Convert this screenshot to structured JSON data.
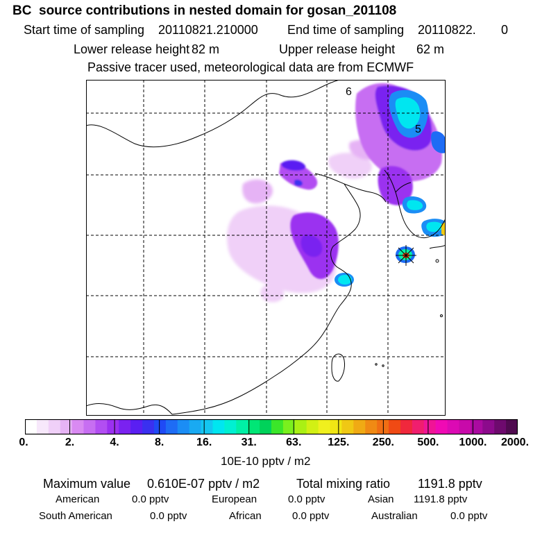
{
  "title": "BC  source contributions in nested domain for gosan_201108",
  "header": {
    "start_label": "Start time of sampling",
    "start_value": "20110821.210000",
    "end_label": "End time of sampling",
    "end_value": "20110822.",
    "end_value_hour": "0",
    "lower_label": "Lower release height",
    "lower_value": "82 m",
    "upper_label": "Upper release height",
    "upper_value": "62 m",
    "tracer_note": "Passive tracer used, meteorological data are from ECMWF"
  },
  "map": {
    "label_a": "6",
    "label_b": "5",
    "receptor_marker": "receptor-star"
  },
  "colorbar": {
    "ticks": [
      "0.",
      "2.",
      "4.",
      "8.",
      "16.",
      "31.",
      "63.",
      "125.",
      "250.",
      "500.",
      "1000.",
      "2000."
    ],
    "unit": "10E-10 pptv / m2",
    "colors": [
      "#ffffff",
      "#f7e8fb",
      "#f0d0f8",
      "#e6b3f5",
      "#d98af2",
      "#c76ef2",
      "#b24ef2",
      "#9b30f0",
      "#7a22f0",
      "#5a1ff2",
      "#3a30f0",
      "#1f4af5",
      "#1e6cf5",
      "#1b8df5",
      "#19aaf2",
      "#14c6f0",
      "#00e6f0",
      "#00f0d2",
      "#00f0a6",
      "#00e676",
      "#00d25a",
      "#3be62a",
      "#7af01e",
      "#aaf014",
      "#d2f014",
      "#f0f01e",
      "#f0e614",
      "#f0c814",
      "#f0aa14",
      "#f08a14",
      "#f06e14",
      "#f04a14",
      "#f0283c",
      "#f01e6e",
      "#f01496",
      "#f00ab4",
      "#dc0ab4",
      "#c80aaa",
      "#aa0aa0",
      "#8c0a8c",
      "#6e0a6e",
      "#500a50"
    ]
  },
  "footer": {
    "max_label": "Maximum value",
    "max_value": "0.610E-07 pptv / m2",
    "total_label": "Total mixing ratio",
    "total_value": "1191.8 pptv",
    "american_label": "American",
    "american_value": "0.0 pptv",
    "european_label": "European",
    "european_value": "0.0 pptv",
    "asian_label": "Asian",
    "asian_value": "1191.8 pptv",
    "south_american_label": "South American",
    "south_american_value": "0.0 pptv",
    "african_label": "African",
    "african_value": "0.0 pptv",
    "australian_label": "Australian",
    "australian_value": "0.0 pptv"
  }
}
